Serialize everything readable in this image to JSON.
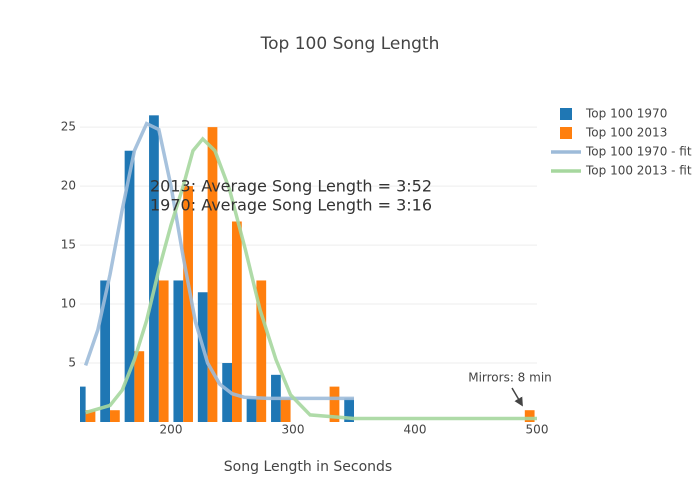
{
  "chart_data": {
    "type": "histogram",
    "title": "Top 100 Song Length",
    "x_label": "Song Length in Seconds",
    "bins": [
      120,
      140,
      160,
      180,
      200,
      220,
      240,
      260,
      280,
      300,
      320,
      340,
      360,
      380,
      400,
      420,
      440,
      460,
      480,
      500
    ],
    "series": [
      {
        "name": "Top 100 1970",
        "color": "#1f77b4",
        "values": [
          3,
          12,
          23,
          26,
          12,
          11,
          5,
          2,
          4,
          0,
          0,
          2,
          0,
          0,
          0,
          0,
          0,
          0,
          0
        ]
      },
      {
        "name": "Top 100 2013",
        "color": "#ff7f0e",
        "values": [
          1,
          1,
          6,
          12,
          20,
          25,
          17,
          12,
          2,
          0,
          3,
          0,
          0,
          0,
          0,
          0,
          0,
          0,
          1
        ]
      }
    ],
    "fits": [
      {
        "name": "Top 100 1970 - fit",
        "color": "#9dbbd9",
        "x": [
          130,
          140,
          150,
          160,
          170,
          180,
          190,
          200,
          210,
          220,
          230,
          240,
          250,
          260,
          280,
          300,
          320,
          350
        ],
        "y": [
          4.8,
          7.8,
          12.5,
          18,
          23,
          25.3,
          24.8,
          20,
          14,
          8.5,
          5,
          3.2,
          2.4,
          2.1,
          2,
          2,
          2,
          2
        ]
      },
      {
        "name": "Top 100 2013 - fit",
        "color": "#a6d79e",
        "x": [
          130,
          150,
          160,
          170,
          180,
          190,
          200,
          210,
          218,
          226,
          236,
          248,
          261,
          273,
          286,
          298,
          314,
          350,
          400,
          450,
          500
        ],
        "y": [
          0.8,
          1.4,
          2.7,
          5.3,
          8.6,
          12.9,
          16.7,
          20,
          23,
          24,
          23,
          19.7,
          14.6,
          9.5,
          5.3,
          2.3,
          0.6,
          0.3,
          0.3,
          0.3,
          0.3
        ]
      }
    ],
    "annotations": [
      "2013: Average Song Length = 3:52",
      "1970: Average Song Length = 3:16",
      "Mirrors: 8 min"
    ],
    "xlim": [
      125.4,
      500
    ],
    "ylim": [
      0,
      27.3
    ],
    "xticks": [
      200,
      300,
      400,
      500
    ],
    "yticks": [
      5,
      10,
      15,
      20,
      25
    ],
    "grid": true
  }
}
